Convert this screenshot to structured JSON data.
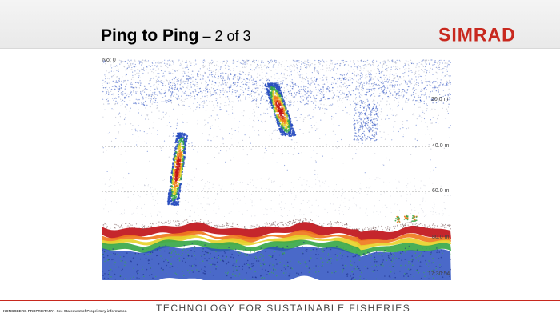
{
  "slide": {
    "title_main": "Ping to Ping",
    "title_sub": " – 2 of 3",
    "logo": "SIMRAD",
    "tagline": "TECHNOLOGY FOR SUSTAINABLE FISHERIES",
    "footer_left": "KONGSBERG PROPRIETARY - See Statement of Proprietary information"
  },
  "echogram": {
    "ping_label": "No: 0",
    "depth_labels": [
      "20.0 m",
      "40.0 m",
      "60.0 m",
      "80.0 m"
    ],
    "time_label": "17:30:54",
    "colors": {
      "red": "#c0141a",
      "orange": "#f07a1e",
      "yellow": "#e7d22b",
      "green": "#3aa84a",
      "blue": "#2a4fc0",
      "grey": "#9aa0b8"
    }
  }
}
